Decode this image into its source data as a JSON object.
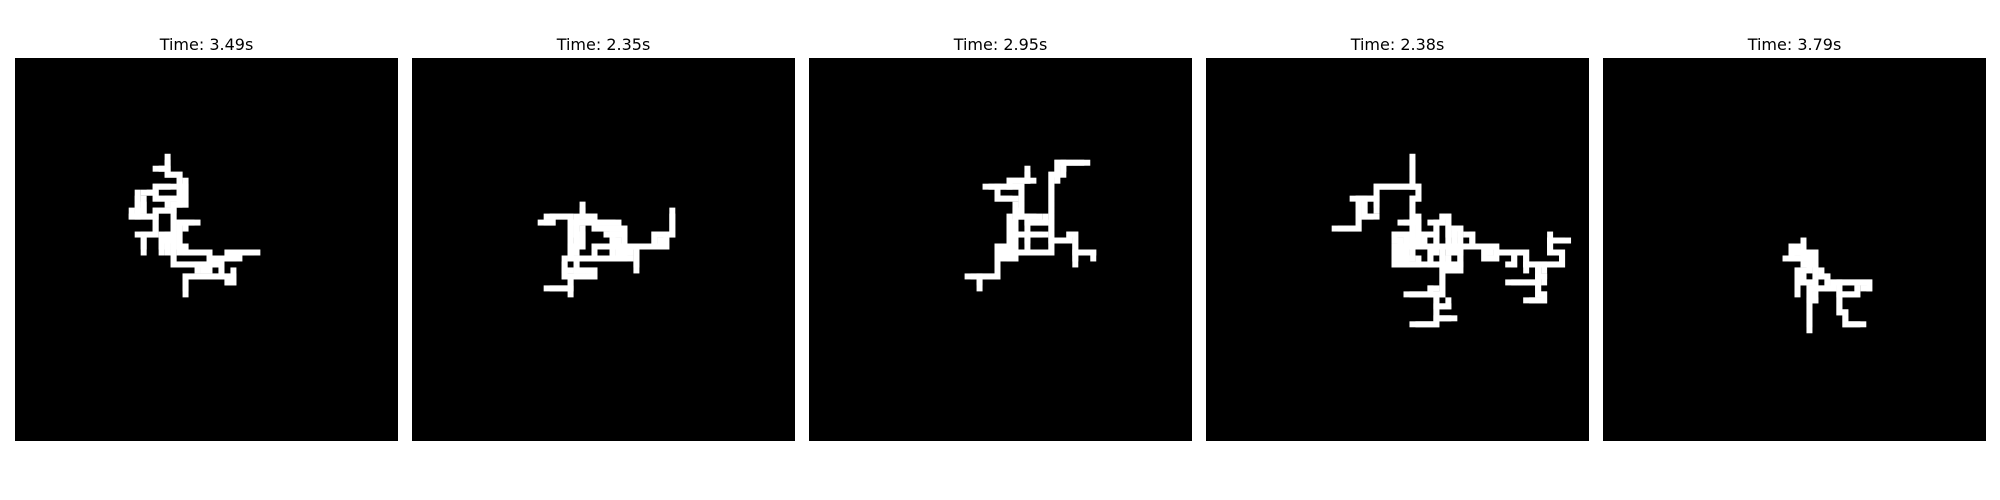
{
  "panels": [
    {
      "title": "Time: 3.49s"
    },
    {
      "title": "Time: 2.35s"
    },
    {
      "title": "Time: 2.95s"
    },
    {
      "title": "Time: 2.38s"
    },
    {
      "title": "Time: 3.79s"
    }
  ],
  "colors": {
    "background": "#ffffff",
    "image_background": "#000000",
    "cluster": "#ffffff"
  }
}
